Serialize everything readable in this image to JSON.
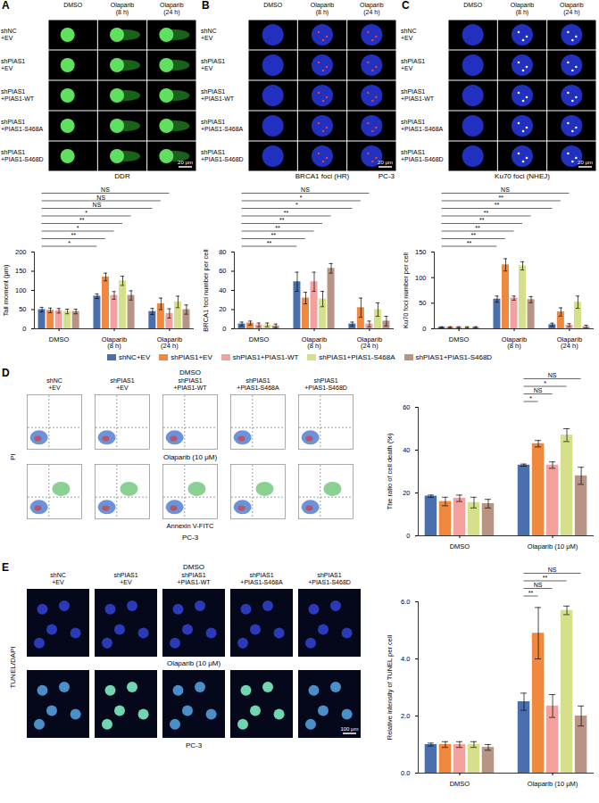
{
  "chart_data": [
    {
      "panel": "A",
      "type": "bar",
      "legend": "bottom",
      "ylabel": "Tail moment (μm)",
      "categories": [
        "DMSO",
        "Olaparib (8 h)",
        "Olaparib (24 h)"
      ],
      "ylim": [
        0,
        200
      ],
      "yticks": [
        0,
        50,
        100,
        150,
        200
      ],
      "series": [
        {
          "name": "shNC+EV",
          "color": "#4a6fae",
          "values": [
            50,
            85,
            45
          ],
          "errors": [
            6,
            6,
            8
          ]
        },
        {
          "name": "shPIAS1+EV",
          "color": "#f0883e",
          "values": [
            48,
            135,
            65
          ],
          "errors": [
            6,
            10,
            15
          ]
        },
        {
          "name": "shPIAS1+PIAS1-WT",
          "color": "#f4a09c",
          "values": [
            47,
            87,
            40
          ],
          "errors": [
            6,
            10,
            12
          ]
        },
        {
          "name": "shPIAS1+PIAS1-S468A",
          "color": "#d6df8a",
          "values": [
            45,
            125,
            70
          ],
          "errors": [
            6,
            12,
            15
          ]
        },
        {
          "name": "shPIAS1+PIAS1-S468D",
          "color": "#b89484",
          "values": [
            45,
            87,
            50
          ],
          "errors": [
            6,
            12,
            12
          ]
        }
      ],
      "significance": [
        {
          "from": [
            "DMSO",
            "shNC+EV"
          ],
          "to": [
            "Olaparib (8 h)",
            "shNC+EV"
          ],
          "label": "*"
        },
        {
          "from": [
            "DMSO",
            "shNC+EV"
          ],
          "to": [
            "Olaparib (8 h)",
            "shPIAS1+EV"
          ],
          "label": "**"
        },
        {
          "from": [
            "DMSO",
            "shNC+EV"
          ],
          "to": [
            "Olaparib (8 h)",
            "shPIAS1+PIAS1-WT"
          ],
          "label": "*"
        },
        {
          "from": [
            "DMSO",
            "shNC+EV"
          ],
          "to": [
            "Olaparib (8 h)",
            "shPIAS1+PIAS1-S468A"
          ],
          "label": "**"
        },
        {
          "from": [
            "DMSO",
            "shNC+EV"
          ],
          "to": [
            "Olaparib (8 h)",
            "shPIAS1+PIAS1-S468D"
          ],
          "label": "*"
        },
        {
          "from": [
            "DMSO",
            "shNC+EV"
          ],
          "to": [
            "Olaparib (24 h)",
            "shNC+EV"
          ],
          "label": "NS"
        },
        {
          "from": [
            "DMSO",
            "shNC+EV"
          ],
          "to": [
            "Olaparib (24 h)",
            "shPIAS1+EV"
          ],
          "label": "NS"
        },
        {
          "from": [
            "DMSO",
            "shNC+EV"
          ],
          "to": [
            "Olaparib (24 h)",
            "shPIAS1+PIAS1-WT"
          ],
          "label": "NS"
        }
      ],
      "images": {
        "columns": [
          "DMSO",
          "Olaparib (8 h)",
          "Olaparib (24 h)"
        ],
        "caption": "DDR",
        "scale_bar": "20 μm"
      }
    },
    {
      "panel": "B",
      "type": "bar",
      "ylabel": "BRCA1 foci number per cell",
      "categories": [
        "DMSO",
        "Olaparib (8 h)",
        "Olaparib (24 h)"
      ],
      "ylim": [
        0,
        80
      ],
      "yticks": [
        0,
        20,
        40,
        60,
        80
      ],
      "series": [
        {
          "name": "shNC+EV",
          "color": "#4a6fae",
          "values": [
            5,
            49,
            5
          ],
          "errors": [
            2,
            10,
            2
          ]
        },
        {
          "name": "shPIAS1+EV",
          "color": "#f0883e",
          "values": [
            6,
            32,
            22
          ],
          "errors": [
            2,
            6,
            10
          ]
        },
        {
          "name": "shPIAS1+PIAS1-WT",
          "color": "#f4a09c",
          "values": [
            4,
            49,
            5
          ],
          "errors": [
            2,
            10,
            3
          ]
        },
        {
          "name": "shPIAS1+PIAS1-S468A",
          "color": "#d6df8a",
          "values": [
            4,
            31,
            20
          ],
          "errors": [
            2,
            8,
            7
          ]
        },
        {
          "name": "shPIAS1+PIAS1-S468D",
          "color": "#b89484",
          "values": [
            3,
            63,
            8
          ],
          "errors": [
            2,
            5,
            5
          ]
        }
      ],
      "significance": [
        {
          "from": [
            "DMSO",
            "shNC+EV"
          ],
          "to": [
            "Olaparib (8 h)",
            "shNC+EV"
          ],
          "label": "**"
        },
        {
          "from": [
            "DMSO",
            "shNC+EV"
          ],
          "to": [
            "Olaparib (8 h)",
            "shPIAS1+EV"
          ],
          "label": "**"
        },
        {
          "from": [
            "DMSO",
            "shNC+EV"
          ],
          "to": [
            "Olaparib (8 h)",
            "shPIAS1+PIAS1-WT"
          ],
          "label": "**"
        },
        {
          "from": [
            "DMSO",
            "shNC+EV"
          ],
          "to": [
            "Olaparib (8 h)",
            "shPIAS1+PIAS1-S468A"
          ],
          "label": "**"
        },
        {
          "from": [
            "DMSO",
            "shNC+EV"
          ],
          "to": [
            "Olaparib (8 h)",
            "shPIAS1+PIAS1-S468D"
          ],
          "label": "**"
        },
        {
          "from": [
            "DMSO",
            "shNC+EV"
          ],
          "to": [
            "Olaparib (24 h)",
            "shNC+EV"
          ],
          "label": "*"
        },
        {
          "from": [
            "DMSO",
            "shNC+EV"
          ],
          "to": [
            "Olaparib (24 h)",
            "shPIAS1+EV"
          ],
          "label": "*"
        },
        {
          "from": [
            "DMSO",
            "shNC+EV"
          ],
          "to": [
            "Olaparib (24 h)",
            "shPIAS1+PIAS1-WT"
          ],
          "label": "NS"
        }
      ],
      "images": {
        "columns": [
          "DMSO",
          "Olaparib (8 h)",
          "Olaparib (24 h)"
        ],
        "caption": "BRCA1 foci (HR)",
        "cell_line": "PC-3",
        "scale_bar": "20 μm"
      }
    },
    {
      "panel": "C",
      "type": "bar",
      "ylabel": "Ku70 foci number per cell",
      "categories": [
        "DMSO",
        "Olaparib (8 h)",
        "Olaparib (24 h)"
      ],
      "ylim": [
        0,
        150
      ],
      "yticks": [
        0,
        50,
        100,
        150
      ],
      "series": [
        {
          "name": "shNC+EV",
          "color": "#4a6fae",
          "values": [
            3,
            58,
            8
          ],
          "errors": [
            1,
            6,
            3
          ]
        },
        {
          "name": "shPIAS1+EV",
          "color": "#f0883e",
          "values": [
            3,
            125,
            33
          ],
          "errors": [
            1,
            12,
            8
          ]
        },
        {
          "name": "shPIAS1+PIAS1-WT",
          "color": "#f4a09c",
          "values": [
            3,
            60,
            7
          ],
          "errors": [
            1,
            4,
            3
          ]
        },
        {
          "name": "shPIAS1+PIAS1-S468A",
          "color": "#d6df8a",
          "values": [
            3,
            123,
            52
          ],
          "errors": [
            1,
            8,
            12
          ]
        },
        {
          "name": "shPIAS1+PIAS1-S468D",
          "color": "#b89484",
          "values": [
            3,
            57,
            4
          ],
          "errors": [
            1,
            6,
            3
          ]
        }
      ],
      "significance": [
        {
          "from": [
            "DMSO",
            "shNC+EV"
          ],
          "to": [
            "Olaparib (8 h)",
            "shNC+EV"
          ],
          "label": "**"
        },
        {
          "from": [
            "DMSO",
            "shNC+EV"
          ],
          "to": [
            "Olaparib (8 h)",
            "shPIAS1+EV"
          ],
          "label": "**"
        },
        {
          "from": [
            "DMSO",
            "shNC+EV"
          ],
          "to": [
            "Olaparib (8 h)",
            "shPIAS1+PIAS1-WT"
          ],
          "label": "**"
        },
        {
          "from": [
            "DMSO",
            "shNC+EV"
          ],
          "to": [
            "Olaparib (8 h)",
            "shPIAS1+PIAS1-S468A"
          ],
          "label": "**"
        },
        {
          "from": [
            "DMSO",
            "shNC+EV"
          ],
          "to": [
            "Olaparib (8 h)",
            "shPIAS1+PIAS1-S468D"
          ],
          "label": "**"
        },
        {
          "from": [
            "DMSO",
            "shNC+EV"
          ],
          "to": [
            "Olaparib (24 h)",
            "shNC+EV"
          ],
          "label": "**"
        },
        {
          "from": [
            "DMSO",
            "shNC+EV"
          ],
          "to": [
            "Olaparib (24 h)",
            "shPIAS1+EV"
          ],
          "label": "**"
        },
        {
          "from": [
            "DMSO",
            "shNC+EV"
          ],
          "to": [
            "Olaparib (24 h)",
            "shPIAS1+PIAS1-WT"
          ],
          "label": "NS"
        }
      ],
      "images": {
        "columns": [
          "DMSO",
          "Olaparib (8 h)",
          "Olaparib (24 h)"
        ],
        "caption": "Ku70 foci (NHEJ)",
        "scale_bar": "20 μm"
      }
    },
    {
      "panel": "D",
      "type": "bar",
      "ylabel": "The ratio of cell death (%)",
      "categories": [
        "DMSO",
        "Olaparib (10 μM)"
      ],
      "ylim": [
        0,
        60
      ],
      "yticks": [
        0,
        20,
        40,
        60
      ],
      "series": [
        {
          "name": "shNC+EV",
          "color": "#4a6fae",
          "values": [
            18.5,
            33
          ],
          "errors": [
            0.5,
            0.5
          ]
        },
        {
          "name": "shPIAS1+EV",
          "color": "#f0883e",
          "values": [
            16,
            43
          ],
          "errors": [
            2,
            1.5
          ]
        },
        {
          "name": "shPIAS1+PIAS1-WT",
          "color": "#f4a09c",
          "values": [
            17.5,
            33
          ],
          "errors": [
            1.5,
            1.5
          ]
        },
        {
          "name": "shPIAS1+PIAS1-S468A",
          "color": "#d6df8a",
          "values": [
            15.5,
            47
          ],
          "errors": [
            2.5,
            3
          ]
        },
        {
          "name": "shPIAS1+PIAS1-S468D",
          "color": "#b89484",
          "values": [
            15,
            28
          ],
          "errors": [
            2,
            4
          ]
        }
      ],
      "significance": [
        {
          "from": [
            "Olaparib (10 μM)",
            "shNC+EV"
          ],
          "to": [
            "Olaparib (10 μM)",
            "shPIAS1+EV"
          ],
          "label": "*"
        },
        {
          "from": [
            "Olaparib (10 μM)",
            "shNC+EV"
          ],
          "to": [
            "Olaparib (10 μM)",
            "shPIAS1+PIAS1-WT"
          ],
          "label": "NS"
        },
        {
          "from": [
            "Olaparib (10 μM)",
            "shNC+EV"
          ],
          "to": [
            "Olaparib (10 μM)",
            "shPIAS1+PIAS1-S468A"
          ],
          "label": "*"
        },
        {
          "from": [
            "Olaparib (10 μM)",
            "shNC+EV"
          ],
          "to": [
            "Olaparib (10 μM)",
            "shPIAS1+PIAS1-S468D"
          ],
          "label": "NS"
        }
      ],
      "images": {
        "rows": [
          "DMSO",
          "Olaparib (10 μM)"
        ],
        "x_label": "Annexin V-FITC",
        "y_label": "PI",
        "cell_line": "PC-3"
      }
    },
    {
      "panel": "E",
      "type": "bar",
      "ylabel": "Relative intensity of TUNEL per cell",
      "categories": [
        "DMSO",
        "Olaparib (10 μM)"
      ],
      "ylim": [
        0,
        6
      ],
      "yticks": [
        0,
        2,
        4,
        6
      ],
      "series": [
        {
          "name": "shNC+EV",
          "color": "#4a6fae",
          "values": [
            1,
            2.5
          ],
          "errors": [
            0.05,
            0.3
          ]
        },
        {
          "name": "shPIAS1+EV",
          "color": "#f0883e",
          "values": [
            1,
            4.9
          ],
          "errors": [
            0.1,
            0.9
          ]
        },
        {
          "name": "shPIAS1+PIAS1-WT",
          "color": "#f4a09c",
          "values": [
            1,
            2.35
          ],
          "errors": [
            0.1,
            0.4
          ]
        },
        {
          "name": "shPIAS1+PIAS1-S468A",
          "color": "#d6df8a",
          "values": [
            1,
            5.7
          ],
          "errors": [
            0.1,
            0.15
          ]
        },
        {
          "name": "shPIAS1+PIAS1-S468D",
          "color": "#b89484",
          "values": [
            0.9,
            2.0
          ],
          "errors": [
            0.1,
            0.35
          ]
        }
      ],
      "significance": [
        {
          "from": [
            "Olaparib (10 μM)",
            "shNC+EV"
          ],
          "to": [
            "Olaparib (10 μM)",
            "shPIAS1+EV"
          ],
          "label": "**"
        },
        {
          "from": [
            "Olaparib (10 μM)",
            "shNC+EV"
          ],
          "to": [
            "Olaparib (10 μM)",
            "shPIAS1+PIAS1-WT"
          ],
          "label": "NS"
        },
        {
          "from": [
            "Olaparib (10 μM)",
            "shNC+EV"
          ],
          "to": [
            "Olaparib (10 μM)",
            "shPIAS1+PIAS1-S468A"
          ],
          "label": "**"
        },
        {
          "from": [
            "Olaparib (10 μM)",
            "shNC+EV"
          ],
          "to": [
            "Olaparib (10 μM)",
            "shPIAS1+PIAS1-S468D"
          ],
          "label": "NS"
        }
      ],
      "images": {
        "rows": [
          "DMSO",
          "Olaparib (10 μM)"
        ],
        "stain": "TUNEL/DAPI",
        "cell_line": "PC-3",
        "scale_bar": "100 μm"
      }
    }
  ]
}
